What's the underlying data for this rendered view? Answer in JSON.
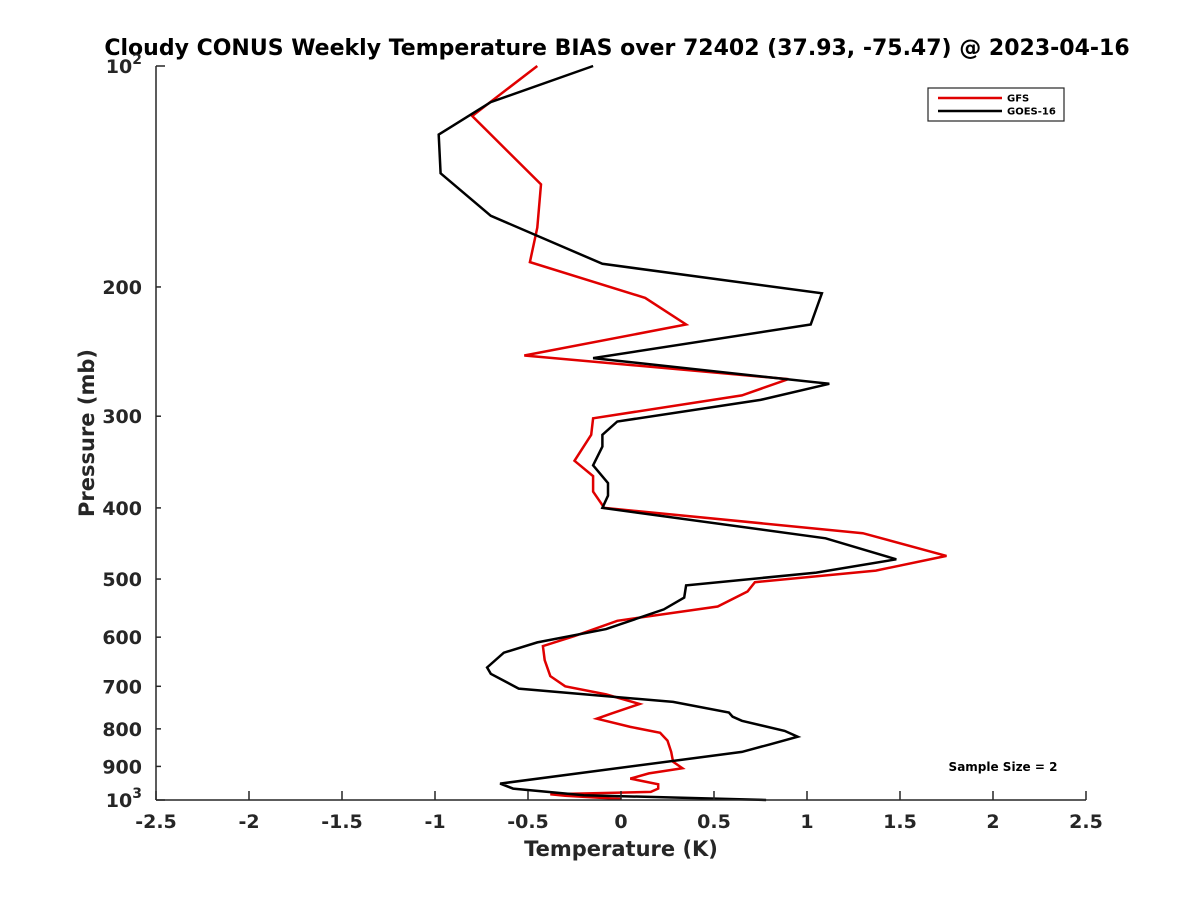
{
  "chart_data": {
    "type": "line",
    "title": "Cloudy CONUS Weekly Temperature BIAS over 72402 (37.93, -75.47) @ 2023-04-16",
    "xlabel": "Temperature (K)",
    "ylabel": "Pressure (mb)",
    "xlim": [
      -2.5,
      2.5
    ],
    "ylim": [
      100,
      1000
    ],
    "y_scale": "log",
    "y_reversed": true,
    "grid": false,
    "legend_position": "top-right",
    "x_ticks": [
      -2.5,
      -2,
      -1.5,
      -1,
      -0.5,
      0,
      0.5,
      1,
      1.5,
      2,
      2.5
    ],
    "x_tick_labels": [
      "-2.5",
      "-2",
      "-1.5",
      "-1",
      "-0.5",
      "0",
      "0.5",
      "1",
      "1.5",
      "2",
      "2.5"
    ],
    "y_ticks": [
      {
        "value": 100,
        "base": "10",
        "exp": "2"
      },
      {
        "value": 200,
        "label": "200"
      },
      {
        "value": 300,
        "label": "300"
      },
      {
        "value": 400,
        "label": "400"
      },
      {
        "value": 500,
        "label": "500"
      },
      {
        "value": 600,
        "label": "600"
      },
      {
        "value": 700,
        "label": "700"
      },
      {
        "value": 800,
        "label": "800"
      },
      {
        "value": 900,
        "label": "900"
      },
      {
        "value": 1000,
        "base": "10",
        "exp": "3"
      }
    ],
    "annotation": "Sample Size = 2",
    "series": [
      {
        "name": "GFS",
        "color": "#e00000",
        "points": [
          [
            -0.45,
            100
          ],
          [
            -0.8,
            117
          ],
          [
            -0.43,
            145
          ],
          [
            -0.45,
            166
          ],
          [
            -0.49,
            185
          ],
          [
            0.13,
            207
          ],
          [
            0.35,
            225
          ],
          [
            -0.52,
            248
          ],
          [
            0.9,
            267
          ],
          [
            0.65,
            281
          ],
          [
            -0.15,
            302
          ],
          [
            -0.16,
            318
          ],
          [
            -0.25,
            345
          ],
          [
            -0.15,
            362
          ],
          [
            -0.15,
            380
          ],
          [
            -0.09,
            400
          ],
          [
            1.3,
            433
          ],
          [
            1.75,
            465
          ],
          [
            1.37,
            487
          ],
          [
            0.72,
            505
          ],
          [
            0.68,
            520
          ],
          [
            0.52,
            545
          ],
          [
            -0.02,
            570
          ],
          [
            -0.25,
            598
          ],
          [
            -0.42,
            617
          ],
          [
            -0.41,
            645
          ],
          [
            -0.38,
            678
          ],
          [
            -0.3,
            700
          ],
          [
            -0.08,
            718
          ],
          [
            0.1,
            740
          ],
          [
            -0.05,
            762
          ],
          [
            -0.13,
            775
          ],
          [
            0.05,
            795
          ],
          [
            0.21,
            810
          ],
          [
            0.25,
            830
          ],
          [
            0.27,
            860
          ],
          [
            0.28,
            887
          ],
          [
            0.33,
            905
          ],
          [
            0.15,
            920
          ],
          [
            0.05,
            935
          ],
          [
            0.2,
            952
          ],
          [
            0.2,
            965
          ],
          [
            0.16,
            975
          ],
          [
            -0.38,
            982
          ],
          [
            -0.3,
            987
          ],
          [
            0.0,
            997
          ]
        ]
      },
      {
        "name": "GOES-16",
        "color": "#000000",
        "points": [
          [
            -0.15,
            100
          ],
          [
            -0.7,
            112
          ],
          [
            -0.98,
            124
          ],
          [
            -0.97,
            140
          ],
          [
            -0.7,
            160
          ],
          [
            -0.1,
            186
          ],
          [
            1.08,
            204
          ],
          [
            1.02,
            225
          ],
          [
            -0.15,
            250
          ],
          [
            1.12,
            271
          ],
          [
            0.75,
            285
          ],
          [
            -0.02,
            305
          ],
          [
            -0.1,
            318
          ],
          [
            -0.1,
            330
          ],
          [
            -0.15,
            350
          ],
          [
            -0.07,
            370
          ],
          [
            -0.07,
            385
          ],
          [
            -0.1,
            400
          ],
          [
            1.1,
            440
          ],
          [
            1.48,
            470
          ],
          [
            1.05,
            490
          ],
          [
            0.35,
            510
          ],
          [
            0.34,
            530
          ],
          [
            0.23,
            550
          ],
          [
            -0.08,
            585
          ],
          [
            -0.45,
            610
          ],
          [
            -0.63,
            630
          ],
          [
            -0.72,
            660
          ],
          [
            -0.7,
            673
          ],
          [
            -0.55,
            705
          ],
          [
            0.28,
            735
          ],
          [
            0.58,
            760
          ],
          [
            0.6,
            770
          ],
          [
            0.65,
            780
          ],
          [
            0.88,
            805
          ],
          [
            0.95,
            820
          ],
          [
            0.8,
            840
          ],
          [
            0.65,
            860
          ],
          [
            -0.65,
            950
          ],
          [
            -0.58,
            965
          ],
          [
            -0.2,
            985
          ],
          [
            0.78,
            1000
          ]
        ]
      }
    ]
  }
}
